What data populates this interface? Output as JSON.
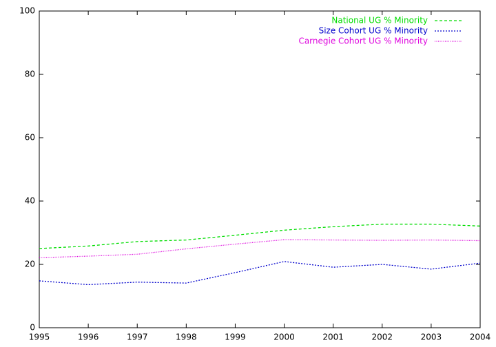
{
  "chart_data": {
    "type": "line",
    "x": [
      1995,
      1996,
      1997,
      1998,
      1999,
      2000,
      2001,
      2002,
      2003,
      2004
    ],
    "series": [
      {
        "name": "National UG % Minority",
        "color": "#00dd00",
        "dash": "dashed",
        "values": [
          25.0,
          25.8,
          27.2,
          27.7,
          29.2,
          30.8,
          31.9,
          32.7,
          32.7,
          32.1
        ]
      },
      {
        "name": "Size Cohort UG % Minority",
        "color": "#0000cc",
        "dash": "dotted",
        "values": [
          14.8,
          13.6,
          14.4,
          14.1,
          17.4,
          20.9,
          19.1,
          20.0,
          18.5,
          20.4
        ]
      },
      {
        "name": "Carnegie Cohort UG % Minority",
        "color": "#dd00dd",
        "dash": "fine-dotted",
        "values": [
          22.1,
          22.6,
          23.2,
          24.9,
          26.4,
          27.8,
          27.7,
          27.6,
          27.7,
          27.5
        ]
      }
    ],
    "xlim": [
      1995,
      2004
    ],
    "xticks": [
      1995,
      1996,
      1997,
      1998,
      1999,
      2000,
      2001,
      2002,
      2003,
      2004
    ],
    "ylim": [
      0,
      100
    ],
    "yticks": [
      0,
      20,
      40,
      60,
      80,
      100
    ],
    "legend": "top-right"
  }
}
